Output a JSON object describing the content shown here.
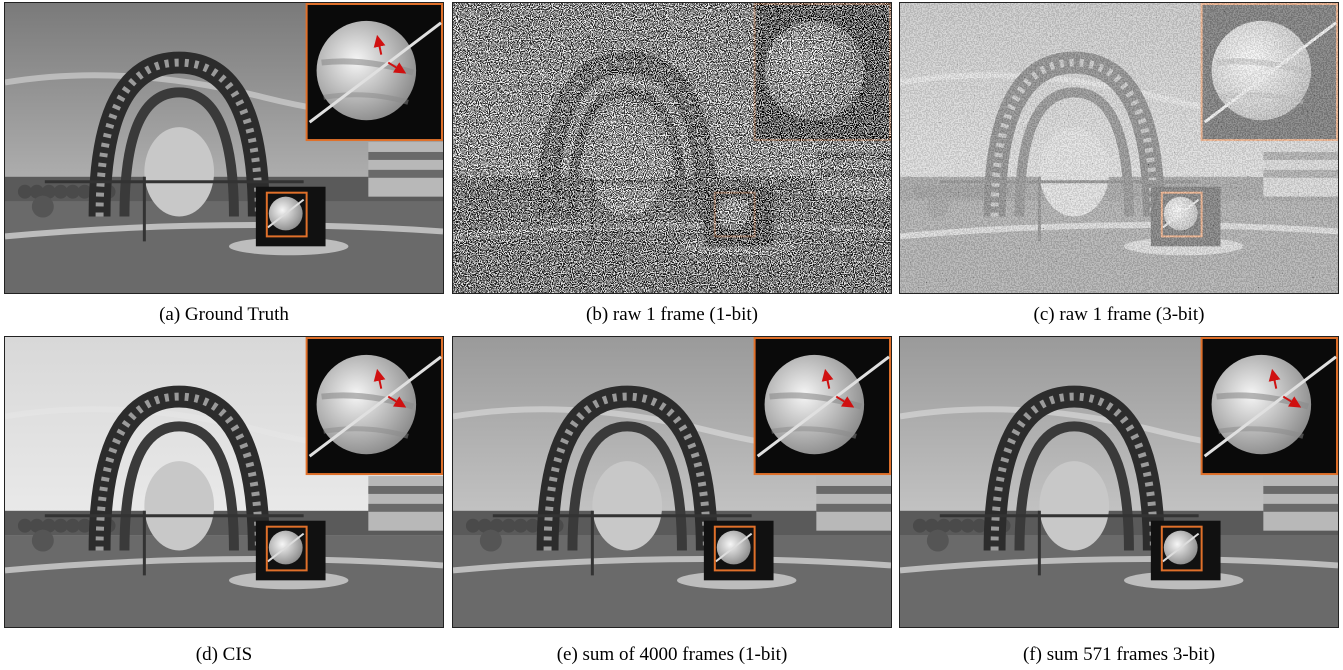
{
  "figure": {
    "panels": [
      {
        "id": "a",
        "caption": "(a) Ground Truth",
        "style": "ground-truth"
      },
      {
        "id": "b",
        "caption": "(b) raw 1 frame (1-bit)",
        "style": "noise-1bit"
      },
      {
        "id": "c",
        "caption": "(c) raw 1 frame (3-bit)",
        "style": "noise-3bit"
      },
      {
        "id": "d",
        "caption": "(d) CIS",
        "style": "cis"
      },
      {
        "id": "e",
        "caption": "(e) sum of 4000 frames (1-bit)",
        "style": "sum"
      },
      {
        "id": "f",
        "caption": "(f) sum 571 frames 3-bit)",
        "style": "sum"
      }
    ],
    "colors": {
      "zoom_box": "#e0702a",
      "arrow": "#d01010"
    }
  }
}
